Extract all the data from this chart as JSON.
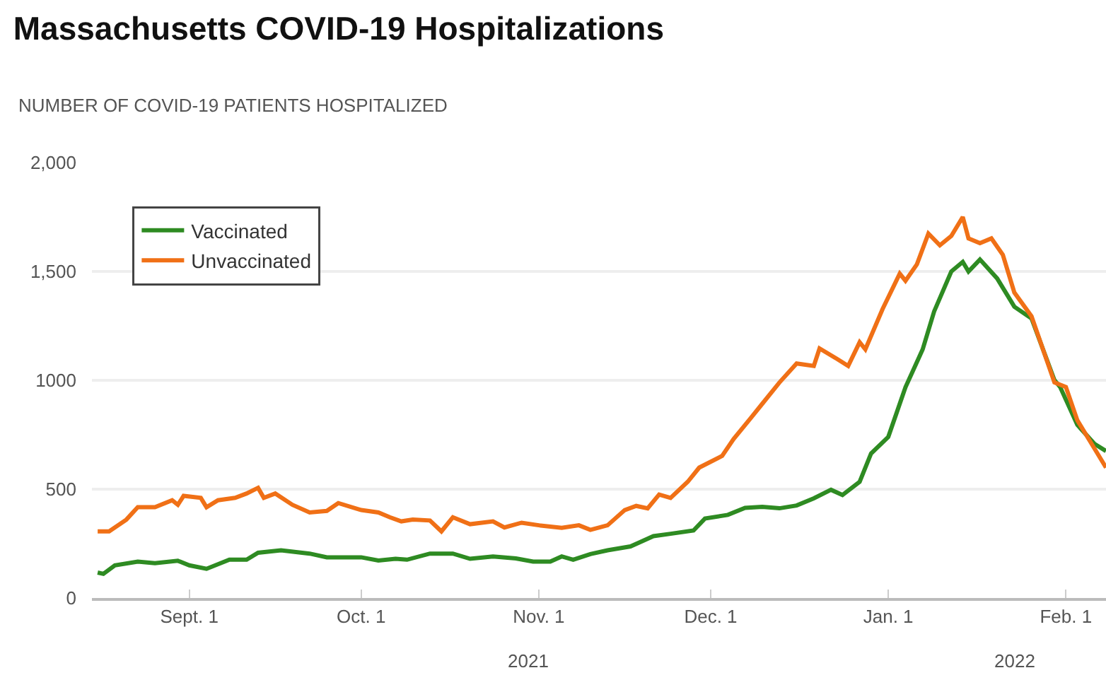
{
  "chart_data": {
    "type": "line",
    "title": "Massachusetts COVID-19 Hospitalizations",
    "ylabel": "NUMBER OF COVID-19 PATIENTS HOSPITALIZED",
    "annotations": [
      "2021",
      "2022"
    ],
    "xlim": [
      "2021-08-15",
      "2022-02-08"
    ],
    "xticks": [
      {
        "value": "2021-09-01",
        "label": "Sept. 1"
      },
      {
        "value": "2021-10-01",
        "label": "Oct. 1"
      },
      {
        "value": "2021-11-01",
        "label": "Nov. 1"
      },
      {
        "value": "2021-12-01",
        "label": "Dec. 1"
      },
      {
        "value": "2022-01-01",
        "label": "Jan. 1"
      },
      {
        "value": "2022-02-01",
        "label": "Feb. 1"
      }
    ],
    "ylim": [
      0,
      2000
    ],
    "yticks": [
      0,
      500,
      1000,
      {
        "value": 1500,
        "label": "1,500"
      },
      {
        "value": 2000,
        "label": "2,000"
      }
    ],
    "grid": "y",
    "legend": "top left",
    "line_style": "solid",
    "marker": "none",
    "series": [
      {
        "name": "Vaccinated",
        "color": "#2e8b22",
        "x": [
          "2021-08-16",
          "2021-08-17",
          "2021-08-19",
          "2021-08-23",
          "2021-08-26",
          "2021-08-30",
          "2021-09-01",
          "2021-09-04",
          "2021-09-08",
          "2021-09-11",
          "2021-09-13",
          "2021-09-17",
          "2021-09-22",
          "2021-09-25",
          "2021-10-01",
          "2021-10-04",
          "2021-10-07",
          "2021-10-09",
          "2021-10-13",
          "2021-10-17",
          "2021-10-20",
          "2021-10-24",
          "2021-10-28",
          "2021-10-31",
          "2021-11-03",
          "2021-11-05",
          "2021-11-07",
          "2021-11-10",
          "2021-11-13",
          "2021-11-17",
          "2021-11-21",
          "2021-11-24",
          "2021-11-28",
          "2021-11-30",
          "2021-12-04",
          "2021-12-07",
          "2021-12-10",
          "2021-12-13",
          "2021-12-16",
          "2021-12-19",
          "2021-12-22",
          "2021-12-24",
          "2021-12-27",
          "2021-12-29",
          "2022-01-01",
          "2022-01-04",
          "2022-01-07",
          "2022-01-09",
          "2022-01-12",
          "2022-01-14",
          "2022-01-15",
          "2022-01-17",
          "2022-01-20",
          "2022-01-23",
          "2022-01-26",
          "2022-01-30",
          "2022-01-31",
          "2022-02-03",
          "2022-02-06",
          "2022-02-08"
        ],
        "values": [
          117,
          111,
          150,
          167,
          160,
          171,
          150,
          134,
          176,
          176,
          208,
          219,
          204,
          187,
          187,
          172,
          180,
          176,
          204,
          204,
          180,
          191,
          182,
          167,
          167,
          191,
          176,
          202,
          219,
          237,
          284,
          295,
          310,
          365,
          382,
          414,
          419,
          412,
          425,
          458,
          497,
          473,
          534,
          664,
          740,
          968,
          1142,
          1316,
          1500,
          1544,
          1500,
          1555,
          1468,
          1338,
          1284,
          1001,
          969,
          795,
          708,
          675
        ]
      },
      {
        "name": "Unvaccinated",
        "color": "#f07016",
        "x": [
          "2021-08-16",
          "2021-08-18",
          "2021-08-21",
          "2021-08-23",
          "2021-08-26",
          "2021-08-29",
          "2021-08-30",
          "2021-08-31",
          "2021-09-03",
          "2021-09-04",
          "2021-09-06",
          "2021-09-09",
          "2021-09-11",
          "2021-09-13",
          "2021-09-14",
          "2021-09-16",
          "2021-09-19",
          "2021-09-22",
          "2021-09-25",
          "2021-09-27",
          "2021-10-01",
          "2021-10-04",
          "2021-10-06",
          "2021-10-08",
          "2021-10-10",
          "2021-10-13",
          "2021-10-15",
          "2021-10-17",
          "2021-10-20",
          "2021-10-24",
          "2021-10-26",
          "2021-10-29",
          "2021-11-01",
          "2021-11-05",
          "2021-11-08",
          "2021-11-10",
          "2021-11-13",
          "2021-11-16",
          "2021-11-18",
          "2021-11-20",
          "2021-11-22",
          "2021-11-24",
          "2021-11-27",
          "2021-11-29",
          "2021-12-03",
          "2021-12-05",
          "2021-12-08",
          "2021-12-10",
          "2021-12-13",
          "2021-12-16",
          "2021-12-19",
          "2021-12-20",
          "2021-12-23",
          "2021-12-25",
          "2021-12-27",
          "2021-12-28",
          "2021-12-31",
          "2022-01-03",
          "2022-01-04",
          "2022-01-06",
          "2022-01-08",
          "2022-01-10",
          "2022-01-12",
          "2022-01-14",
          "2022-01-15",
          "2022-01-17",
          "2022-01-19",
          "2022-01-21",
          "2022-01-23",
          "2022-01-26",
          "2022-01-30",
          "2022-02-01",
          "2022-02-03",
          "2022-02-06",
          "2022-02-08"
        ],
        "values": [
          306,
          306,
          360,
          417,
          417,
          449,
          428,
          469,
          460,
          417,
          449,
          460,
          480,
          506,
          460,
          480,
          428,
          393,
          400,
          436,
          404,
          393,
          371,
          352,
          360,
          356,
          306,
          371,
          339,
          352,
          324,
          346,
          334,
          322,
          334,
          313,
          334,
          404,
          423,
          412,
          475,
          460,
          534,
          599,
          653,
          730,
          827,
          892,
          990,
          1077,
          1066,
          1146,
          1099,
          1066,
          1175,
          1142,
          1327,
          1490,
          1457,
          1533,
          1674,
          1620,
          1663,
          1750,
          1652,
          1630,
          1652,
          1576,
          1403,
          1294,
          990,
          969,
          816,
          686,
          599
        ]
      }
    ]
  }
}
